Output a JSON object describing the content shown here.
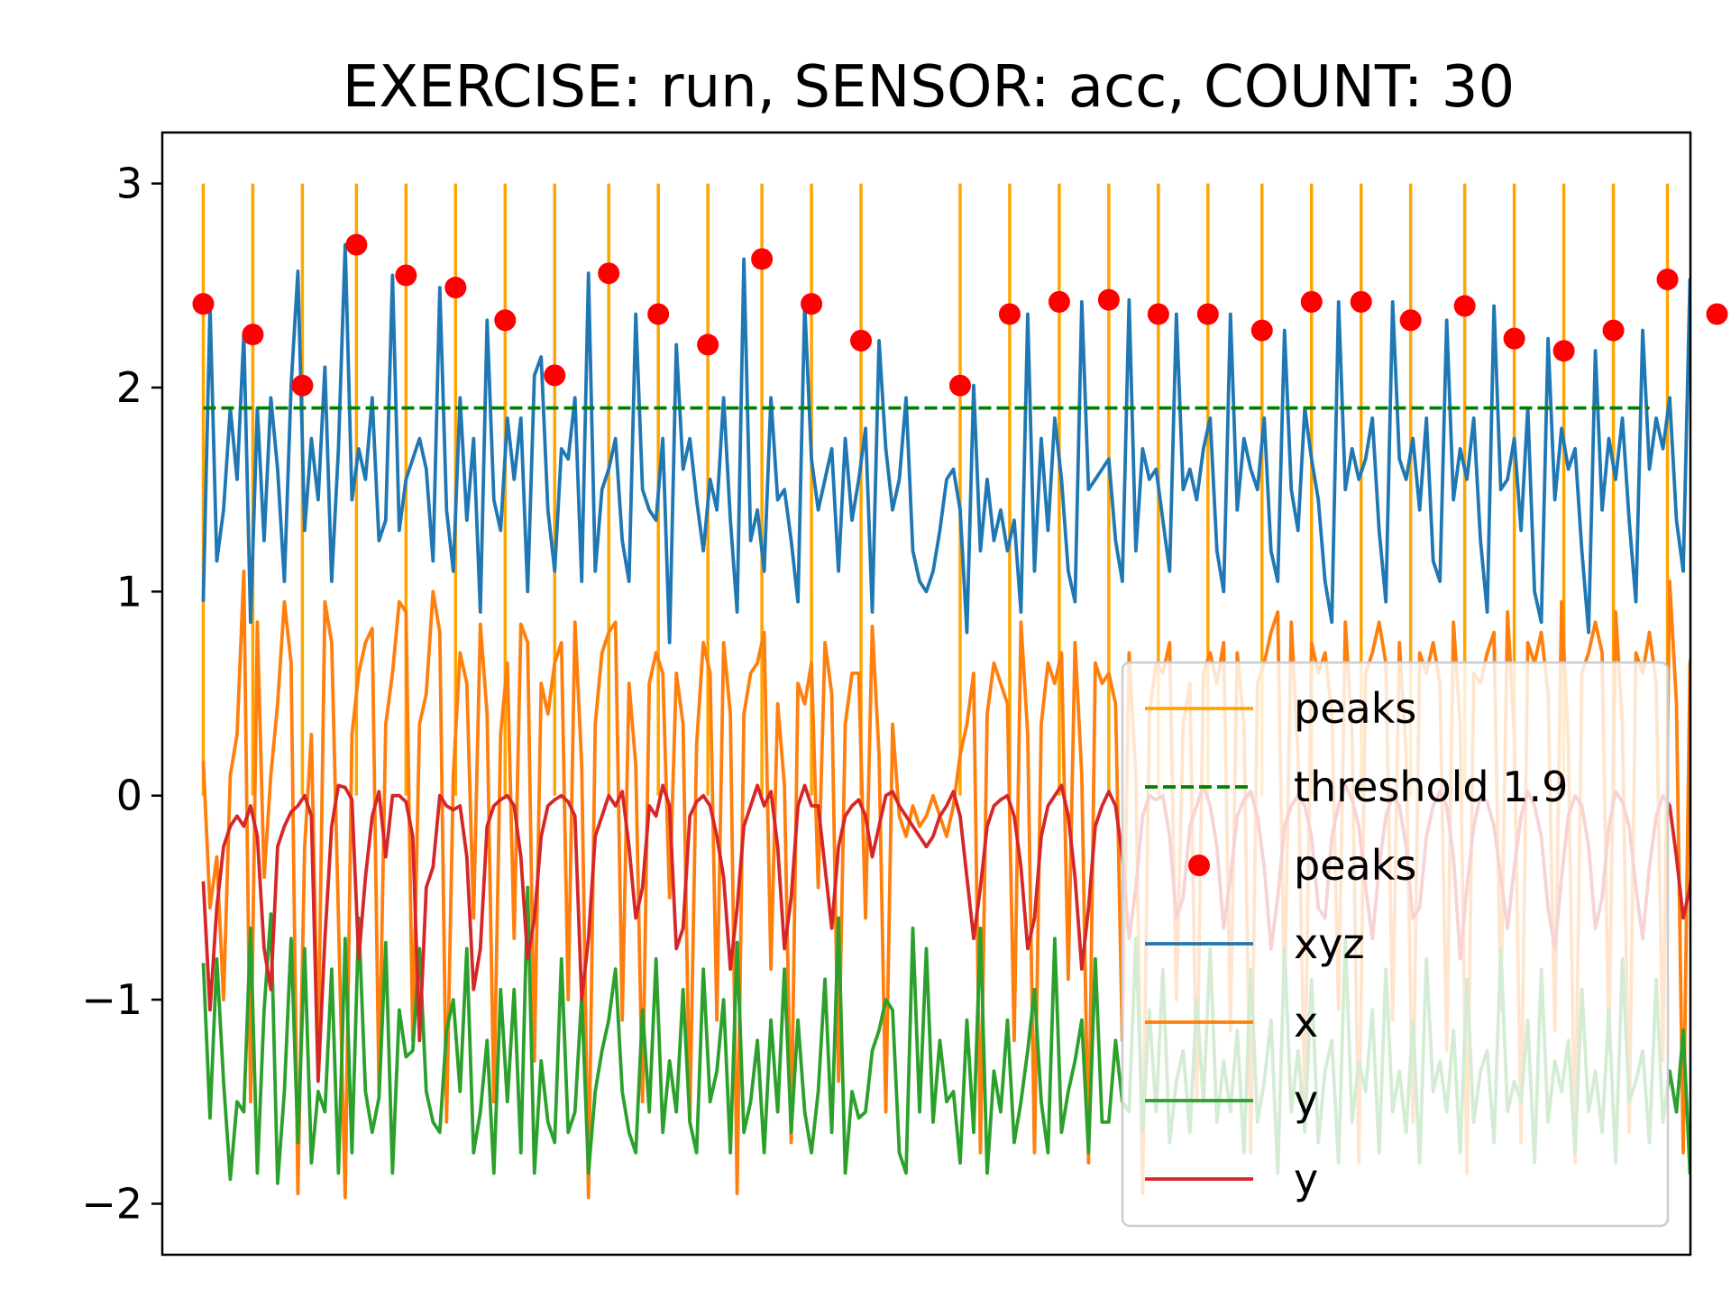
{
  "chart_data": {
    "type": "line",
    "title": "EXERCISE: run, SENSOR: acc, COUNT: 30",
    "xlabel": "",
    "ylabel": "",
    "ylim": [
      -2.25,
      3.25
    ],
    "xlim": [
      -9.1,
      330.1
    ],
    "yticks": [
      -2,
      -1,
      0,
      1,
      2,
      3
    ],
    "ytick_labels": [
      "−2",
      "−1",
      "0",
      "1",
      "2",
      "3"
    ],
    "xticks_visible": false,
    "grid": false,
    "legend_position": "lower right",
    "colors": {
      "peak_lines": "#ffa500",
      "threshold": "#008000",
      "peak_markers": "#ff0000",
      "xyz": "#1f77b4",
      "x": "#ff7f0e",
      "y": "#2ca02c",
      "y2": "#d62728"
    },
    "threshold": {
      "value": 1.9,
      "label": "threshold 1.9"
    },
    "peak_lines": {
      "label": "peaks",
      "y_range": [
        0,
        3
      ]
    },
    "peak_markers": {
      "label": "peaks",
      "x": [
        0,
        11,
        22,
        34,
        45,
        56,
        67,
        78,
        90,
        101,
        112,
        124,
        135,
        146,
        168,
        179,
        190,
        201,
        212,
        223,
        235,
        246,
        257,
        268,
        280,
        291,
        302,
        313,
        325,
        336
      ],
      "values": [
        2.41,
        2.26,
        2.01,
        2.7,
        2.55,
        2.49,
        2.33,
        2.06,
        2.56,
        2.36,
        2.21,
        2.63,
        2.41,
        2.23,
        2.01,
        2.36,
        2.42,
        2.43,
        2.36,
        2.36,
        2.28,
        2.42,
        2.42,
        2.33,
        2.4,
        2.24,
        2.18,
        2.28,
        2.53,
        2.36
      ]
    },
    "series": [
      {
        "name": "xyz",
        "values": [
          0.95,
          2.4,
          1.15,
          1.4,
          1.9,
          1.55,
          2.26,
          0.85,
          1.9,
          1.25,
          1.95,
          1.6,
          1.05,
          2.01,
          2.57,
          1.3,
          1.75,
          1.45,
          2.1,
          1.05,
          1.7,
          2.7,
          1.45,
          1.7,
          1.55,
          1.95,
          1.25,
          1.35,
          2.55,
          1.3,
          1.55,
          1.65,
          1.75,
          1.6,
          1.15,
          2.49,
          1.4,
          1.1,
          1.95,
          1.35,
          1.75,
          0.9,
          2.33,
          1.45,
          1.3,
          1.85,
          1.55,
          1.85,
          1.0,
          2.06,
          2.15,
          1.4,
          1.1,
          1.7,
          1.65,
          1.95,
          1.05,
          2.56,
          1.1,
          1.5,
          1.6,
          1.75,
          1.25,
          1.05,
          2.36,
          1.5,
          1.4,
          1.35,
          1.75,
          0.75,
          2.21,
          1.6,
          1.75,
          1.45,
          1.2,
          1.55,
          1.4,
          1.95,
          1.35,
          0.9,
          2.63,
          1.25,
          1.4,
          1.1,
          1.95,
          1.45,
          1.5,
          1.25,
          0.95,
          2.41,
          1.65,
          1.4,
          1.55,
          1.7,
          1.1,
          1.75,
          1.35,
          1.55,
          1.8,
          0.9,
          2.23,
          1.7,
          1.4,
          1.55,
          1.95,
          1.2,
          1.05,
          1.0,
          1.1,
          1.3,
          1.55,
          1.6,
          1.4,
          0.8,
          2.01,
          1.2,
          1.55,
          1.25,
          1.4,
          1.2,
          1.35,
          0.9,
          2.36,
          1.1,
          1.75,
          1.3,
          1.85,
          1.55,
          1.1,
          0.95,
          2.42,
          1.5,
          1.55,
          1.6,
          1.65,
          1.25,
          1.05,
          2.43,
          1.2,
          1.7,
          1.55,
          1.6,
          1.35,
          1.1,
          2.36,
          1.5,
          1.6,
          1.45,
          1.7,
          1.85,
          1.2,
          1.0,
          2.36,
          1.4,
          1.75,
          1.6,
          1.5,
          1.85,
          1.2,
          1.05,
          2.28,
          1.5,
          1.3,
          1.9,
          1.65,
          1.45,
          1.05,
          0.85,
          2.42,
          1.5,
          1.7,
          1.55,
          1.65,
          1.85,
          1.3,
          0.95,
          2.42,
          1.65,
          1.55,
          1.75,
          1.4,
          1.85,
          1.15,
          1.05,
          2.33,
          1.45,
          1.7,
          1.55,
          1.85,
          1.25,
          0.9,
          2.4,
          1.5,
          1.55,
          1.75,
          1.3,
          1.9,
          1.0,
          0.85,
          2.24,
          1.45,
          1.8,
          1.6,
          1.7,
          1.2,
          0.8,
          2.18,
          1.4,
          1.75,
          1.55,
          1.85,
          1.35,
          0.95,
          2.28,
          1.6,
          1.85,
          1.7,
          1.95,
          1.35,
          1.1,
          2.53,
          1.55,
          1.9,
          1.5,
          1.7,
          1.8,
          1.05,
          2.36,
          1.45,
          1.95,
          1.75,
          1.75,
          1.1
        ]
      },
      {
        "name": "x",
        "values": [
          0.17,
          -0.55,
          -0.3,
          -1.0,
          0.1,
          0.3,
          1.1,
          -1.5,
          0.85,
          -0.4,
          0.1,
          0.45,
          0.95,
          0.65,
          -1.95,
          -0.25,
          0.3,
          -1.3,
          0.95,
          0.75,
          -0.6,
          -1.97,
          0.3,
          0.6,
          0.75,
          0.82,
          -1.45,
          0.35,
          0.6,
          0.95,
          0.9,
          -1.2,
          0.35,
          0.5,
          1.0,
          0.8,
          -1.6,
          0.1,
          0.7,
          0.55,
          -0.6,
          0.84,
          0.4,
          -1.5,
          0.3,
          0.65,
          -0.7,
          0.84,
          0.75,
          -1.3,
          0.55,
          0.4,
          0.65,
          0.75,
          -1.0,
          0.85,
          0.15,
          -1.97,
          0.35,
          0.7,
          0.8,
          0.85,
          -1.1,
          0.55,
          0.15,
          -1.5,
          0.55,
          0.7,
          0.6,
          -0.5,
          0.6,
          0.35,
          -1.6,
          0.25,
          0.75,
          0.6,
          -1.1,
          0.75,
          0.4,
          -1.95,
          0.4,
          0.6,
          0.65,
          0.8,
          -0.85,
          0.45,
          0.05,
          -1.7,
          0.55,
          0.45,
          0.65,
          -0.45,
          0.75,
          0.5,
          -1.4,
          0.35,
          0.6,
          0.6,
          -0.6,
          0.83,
          0.2,
          -1.55,
          0.35,
          -0.1,
          -0.2,
          -0.05,
          -0.15,
          -0.1,
          0.0,
          -0.1,
          -0.2,
          -0.05,
          0.2,
          0.35,
          0.6,
          -1.75,
          0.4,
          0.65,
          0.55,
          0.45,
          -1.2,
          0.85,
          0.3,
          -1.75,
          0.35,
          0.65,
          0.55,
          0.7,
          -0.9,
          0.75,
          0.1,
          -1.8,
          0.65,
          0.55,
          0.6,
          0.45,
          -1.2,
          0.7,
          0.1,
          -1.95,
          0.4,
          0.65,
          0.6,
          0.75,
          -1.0,
          0.35,
          0.55,
          -1.5,
          0.6,
          0.7,
          0.55,
          0.75,
          -1.15,
          0.7,
          0.35,
          -1.75,
          0.55,
          0.65,
          0.8,
          0.9,
          -1.0,
          0.85,
          0.2,
          -1.55,
          0.75,
          0.6,
          0.7,
          0.4,
          -1.05,
          0.85,
          0.3,
          -1.8,
          0.6,
          0.7,
          0.85,
          0.65,
          -1.1,
          0.75,
          0.2,
          -1.6,
          0.7,
          0.6,
          0.75,
          0.55,
          -1.25,
          0.85,
          0.35,
          -1.85,
          0.6,
          0.55,
          0.7,
          0.8,
          -1.05,
          0.9,
          0.3,
          -1.7,
          0.75,
          0.65,
          0.8,
          0.5,
          -1.15,
          0.95,
          0.25,
          -1.8,
          0.6,
          0.7,
          0.85,
          0.7,
          -1.25,
          0.9,
          0.35,
          -1.65,
          0.7,
          0.6,
          0.8,
          0.55,
          -1.3,
          1.05,
          0.45,
          -1.75,
          0.65,
          0.8,
          0.75,
          0.6,
          -1.2,
          0.95,
          0.35,
          -1.55,
          0.7,
          0.85,
          1.08,
          0.3
        ]
      },
      {
        "name": "y",
        "values": [
          -0.82,
          -1.58,
          -0.8,
          -1.4,
          -1.88,
          -1.5,
          -1.55,
          -0.65,
          -1.85,
          -1.05,
          -0.58,
          -1.9,
          -1.45,
          -0.7,
          -1.7,
          -0.75,
          -1.8,
          -1.45,
          -1.55,
          -0.85,
          -1.85,
          -0.7,
          -1.75,
          -0.6,
          -1.45,
          -1.65,
          -1.48,
          -0.72,
          -1.85,
          -1.05,
          -1.28,
          -1.25,
          -0.75,
          -1.45,
          -1.6,
          -1.65,
          -1.15,
          -1.0,
          -1.45,
          -0.75,
          -1.75,
          -1.55,
          -1.2,
          -1.85,
          -0.95,
          -1.5,
          -0.95,
          -1.75,
          -0.45,
          -1.85,
          -1.3,
          -1.6,
          -1.7,
          -0.8,
          -1.65,
          -1.55,
          -0.98,
          -1.85,
          -1.45,
          -1.25,
          -1.1,
          -0.85,
          -1.45,
          -1.65,
          -1.75,
          -1.05,
          -1.55,
          -0.8,
          -1.65,
          -1.3,
          -1.55,
          -0.95,
          -1.6,
          -1.75,
          -0.85,
          -1.5,
          -1.35,
          -1.0,
          -1.75,
          -0.72,
          -1.65,
          -1.5,
          -1.2,
          -1.75,
          -1.1,
          -1.55,
          -0.85,
          -1.65,
          -1.1,
          -1.55,
          -1.75,
          -1.45,
          -0.9,
          -1.65,
          -0.6,
          -1.85,
          -1.45,
          -1.58,
          -1.55,
          -1.25,
          -1.15,
          -1.0,
          -1.05,
          -1.75,
          -1.85,
          -0.65,
          -1.55,
          -0.75,
          -1.6,
          -1.2,
          -1.5,
          -1.45,
          -1.8,
          -1.1,
          -1.65,
          -0.65,
          -1.85,
          -1.35,
          -1.55,
          -1.1,
          -1.7,
          -1.5,
          -1.25,
          -0.95,
          -1.5,
          -1.75,
          -0.7,
          -1.65,
          -1.45,
          -1.3,
          -1.1,
          -1.75,
          -0.8,
          -1.6,
          -1.6,
          -1.2,
          -1.5,
          -1.55,
          -0.7,
          -1.65,
          -1.05,
          -1.55,
          -0.85,
          -1.7,
          -1.4,
          -1.25,
          -1.65,
          -1.0,
          -1.5,
          -0.75,
          -1.6,
          -1.3,
          -1.55,
          -1.15,
          -1.75,
          -0.85,
          -1.6,
          -1.4,
          -1.1,
          -1.85,
          -0.75,
          -1.55,
          -1.25,
          -1.65,
          -0.9,
          -1.7,
          -1.35,
          -1.2,
          -1.8,
          -0.7,
          -1.6,
          -1.3,
          -1.45,
          -1.05,
          -1.75,
          -0.85,
          -1.55,
          -1.35,
          -1.65,
          -1.1,
          -1.8,
          -0.8,
          -1.45,
          -1.3,
          -1.55,
          -1.15,
          -1.75,
          -0.9,
          -1.6,
          -1.35,
          -1.25,
          -1.7,
          -0.75,
          -1.55,
          -1.4,
          -1.5,
          -1.1,
          -1.8,
          -0.85,
          -1.6,
          -1.3,
          -1.45,
          -1.2,
          -1.75,
          -0.95,
          -1.55,
          -1.35,
          -1.65,
          -1.05,
          -1.8,
          -0.8,
          -1.5,
          -1.4,
          -1.25,
          -1.7,
          -0.9,
          -1.6,
          -1.35,
          -1.55,
          -1.15,
          -1.85,
          -0.85,
          -1.5,
          -1.3,
          -1.45,
          -1.25,
          -1.8,
          -0.95,
          -1.55,
          -1.05
        ]
      },
      {
        "name": "y",
        "values": [
          -0.42,
          -1.05,
          -0.55,
          -0.25,
          -0.15,
          -0.1,
          -0.15,
          -0.05,
          -0.2,
          -0.75,
          -0.95,
          -0.25,
          -0.15,
          -0.08,
          -0.05,
          0.0,
          -0.1,
          -1.4,
          -0.7,
          -0.15,
          0.05,
          0.04,
          -0.02,
          -0.8,
          -0.4,
          -0.1,
          0.02,
          -0.3,
          0.0,
          0.0,
          -0.03,
          -0.2,
          -1.2,
          -0.45,
          -0.35,
          -0.0,
          -0.05,
          -0.07,
          -0.05,
          -0.3,
          -0.95,
          -0.75,
          -0.15,
          -0.05,
          -0.02,
          0.0,
          -0.05,
          -0.3,
          -0.8,
          -0.6,
          -0.2,
          -0.05,
          -0.02,
          0.0,
          -0.03,
          -0.1,
          -1.0,
          -0.7,
          -0.2,
          -0.1,
          0.0,
          -0.05,
          0.02,
          -0.25,
          -0.6,
          -0.45,
          -0.05,
          -0.1,
          0.05,
          -0.05,
          -0.75,
          -0.65,
          -0.1,
          -0.03,
          0.0,
          -0.05,
          -0.2,
          -0.4,
          -0.85,
          -0.55,
          -0.15,
          -0.05,
          0.05,
          -0.05,
          0.02,
          -0.25,
          -0.75,
          -0.5,
          -0.05,
          0.05,
          -0.05,
          -0.05,
          -0.35,
          -0.65,
          -0.25,
          -0.1,
          -0.05,
          -0.02,
          -0.1,
          -0.3,
          -0.15,
          0.0,
          0.02,
          -0.05,
          -0.1,
          -0.15,
          -0.2,
          -0.25,
          -0.2,
          -0.1,
          -0.05,
          0.02,
          -0.1,
          -0.4,
          -0.7,
          -0.45,
          -0.15,
          -0.05,
          -0.02,
          0.0,
          -0.1,
          -0.35,
          -0.75,
          -0.6,
          -0.2,
          -0.05,
          0.0,
          0.05,
          -0.1,
          -0.4,
          -0.85,
          -0.55,
          -0.15,
          -0.05,
          0.02,
          -0.05,
          -0.3,
          -0.7,
          -0.45,
          -0.1,
          0.0,
          -0.02,
          0.0,
          -0.2,
          -0.6,
          -0.5,
          -0.15,
          -0.05,
          0.05,
          -0.05,
          -0.25,
          -0.65,
          -0.4,
          -0.1,
          -0.02,
          0.02,
          -0.1,
          -0.35,
          -0.75,
          -0.5,
          -0.15,
          -0.05,
          0.0,
          -0.05,
          -0.2,
          -0.55,
          -0.6,
          -0.2,
          -0.05,
          0.05,
          -0.02,
          -0.15,
          -0.45,
          -0.7,
          -0.35,
          -0.1,
          0.0,
          -0.05,
          -0.25,
          -0.6,
          -0.55,
          -0.2,
          -0.05,
          0.02,
          -0.05,
          -0.3,
          -0.8,
          -0.45,
          -0.15,
          0.0,
          -0.03,
          -0.15,
          -0.4,
          -0.65,
          -0.35,
          -0.1,
          0.02,
          -0.05,
          -0.2,
          -0.55,
          -0.75,
          -0.4,
          -0.1,
          0.0,
          -0.05,
          -0.25,
          -0.65,
          -0.5,
          -0.15,
          0.02,
          -0.03,
          -0.15,
          -0.45,
          -0.7,
          -0.35,
          -0.1,
          0.0,
          -0.05,
          -0.3,
          -0.6,
          -0.45,
          -0.15,
          -0.02,
          0.0,
          -0.2,
          -0.55,
          -0.4,
          -0.1,
          -0.05
        ]
      }
    ],
    "legend": [
      {
        "label": "peaks",
        "kind": "line",
        "color": "#ffa500"
      },
      {
        "label": "threshold 1.9",
        "kind": "dashed",
        "color": "#008000"
      },
      {
        "label": "peaks",
        "kind": "marker",
        "color": "#ff0000"
      },
      {
        "label": "xyz",
        "kind": "line",
        "color": "#1f77b4"
      },
      {
        "label": "x",
        "kind": "line",
        "color": "#ff7f0e"
      },
      {
        "label": "y",
        "kind": "line",
        "color": "#2ca02c"
      },
      {
        "label": "y",
        "kind": "line",
        "color": "#d62728"
      }
    ]
  }
}
